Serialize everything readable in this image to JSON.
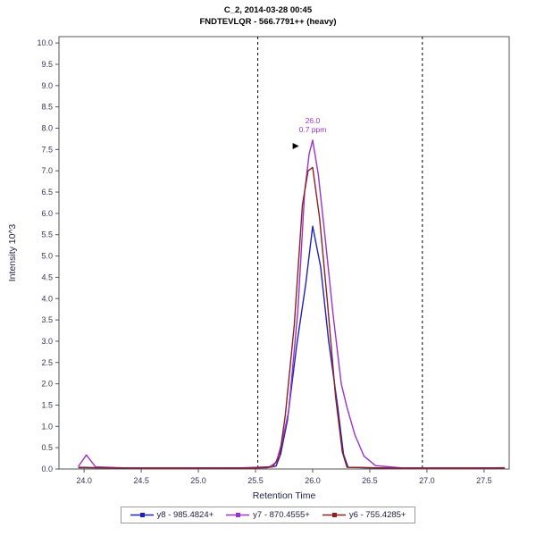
{
  "header": {
    "line1": "C_2, 2014-03-28 00:45",
    "line2": "FNDTEVLQR - 566.7791++ (heavy)"
  },
  "chart_data": {
    "type": "line",
    "title": "C_2, 2014-03-28 00:45 / FNDTEVLQR - 566.7791++ (heavy)",
    "xlabel": "Retention Time",
    "ylabel": "Intensity 10^3",
    "xlim": [
      23.78,
      27.72
    ],
    "ylim": [
      0,
      10.15
    ],
    "xticks": [
      24.0,
      24.5,
      25.0,
      25.5,
      26.0,
      26.5,
      27.0,
      27.5
    ],
    "yticks": [
      0.0,
      0.5,
      1.0,
      1.5,
      2.0,
      2.5,
      3.0,
      3.5,
      4.0,
      4.5,
      5.0,
      5.5,
      6.0,
      6.5,
      7.0,
      7.5,
      8.0,
      8.5,
      9.0,
      9.5,
      10.0
    ],
    "grid": false,
    "legend_position": "bottom",
    "boundaries": [
      25.52,
      26.96
    ],
    "boundary_style": {
      "color": "#000000",
      "dash": "3,3"
    },
    "annotation": {
      "label_rt": "26.0",
      "label_ppm": "0.7 ppm",
      "x": 26.0,
      "y": 7.72,
      "arrow_x": 25.88,
      "arrow_y": 7.58,
      "color": "#9933cc"
    },
    "series": [
      {
        "name": "y8 - 985.4824+",
        "color": "#2020c0",
        "points": [
          [
            23.95,
            0.04
          ],
          [
            24.3,
            0.02
          ],
          [
            24.8,
            0.02
          ],
          [
            25.3,
            0.02
          ],
          [
            25.6,
            0.03
          ],
          [
            25.68,
            0.07
          ],
          [
            25.72,
            0.35
          ],
          [
            25.78,
            1.15
          ],
          [
            25.86,
            2.9
          ],
          [
            25.94,
            4.35
          ],
          [
            26.0,
            5.7
          ],
          [
            26.07,
            4.75
          ],
          [
            26.14,
            3.0
          ],
          [
            26.22,
            1.45
          ],
          [
            26.27,
            0.35
          ],
          [
            26.31,
            0.04
          ],
          [
            26.6,
            0.02
          ],
          [
            27.0,
            0.02
          ],
          [
            27.4,
            0.02
          ],
          [
            27.68,
            0.03
          ]
        ]
      },
      {
        "name": "y7 - 870.4555+",
        "color": "#9933cc",
        "points": [
          [
            23.95,
            0.06
          ],
          [
            24.02,
            0.33
          ],
          [
            24.1,
            0.05
          ],
          [
            24.4,
            0.02
          ],
          [
            24.9,
            0.02
          ],
          [
            25.4,
            0.03
          ],
          [
            25.62,
            0.05
          ],
          [
            25.68,
            0.15
          ],
          [
            25.73,
            0.6
          ],
          [
            25.79,
            1.35
          ],
          [
            25.87,
            3.7
          ],
          [
            25.93,
            6.5
          ],
          [
            25.97,
            7.4
          ],
          [
            26.0,
            7.72
          ],
          [
            26.05,
            6.9
          ],
          [
            26.11,
            5.4
          ],
          [
            26.18,
            3.6
          ],
          [
            26.25,
            2.0
          ],
          [
            26.3,
            1.45
          ],
          [
            26.37,
            0.8
          ],
          [
            26.45,
            0.3
          ],
          [
            26.55,
            0.08
          ],
          [
            26.8,
            0.02
          ],
          [
            27.2,
            0.02
          ],
          [
            27.68,
            0.02
          ]
        ]
      },
      {
        "name": "y6 - 755.4285+",
        "color": "#8b2222",
        "points": [
          [
            23.95,
            0.03
          ],
          [
            24.5,
            0.02
          ],
          [
            25.0,
            0.02
          ],
          [
            25.5,
            0.02
          ],
          [
            25.65,
            0.05
          ],
          [
            25.71,
            0.3
          ],
          [
            25.76,
            1.25
          ],
          [
            25.84,
            3.4
          ],
          [
            25.91,
            6.2
          ],
          [
            25.96,
            7.0
          ],
          [
            26.0,
            7.08
          ],
          [
            26.06,
            5.9
          ],
          [
            26.13,
            3.9
          ],
          [
            26.2,
            1.7
          ],
          [
            26.26,
            0.4
          ],
          [
            26.3,
            0.04
          ],
          [
            26.7,
            0.02
          ],
          [
            27.1,
            0.02
          ],
          [
            27.68,
            0.02
          ]
        ]
      }
    ],
    "styles": {
      "tick_label_color": "#333355",
      "axis_label_color": "#222244",
      "plot_border_color": "#555555"
    }
  },
  "legend": {
    "items": [
      {
        "label": "y8 - 985.4824+",
        "color": "#2020c0"
      },
      {
        "label": "y7 - 870.4555+",
        "color": "#9933cc"
      },
      {
        "label": "y6 - 755.4285+",
        "color": "#8b2222"
      }
    ]
  }
}
